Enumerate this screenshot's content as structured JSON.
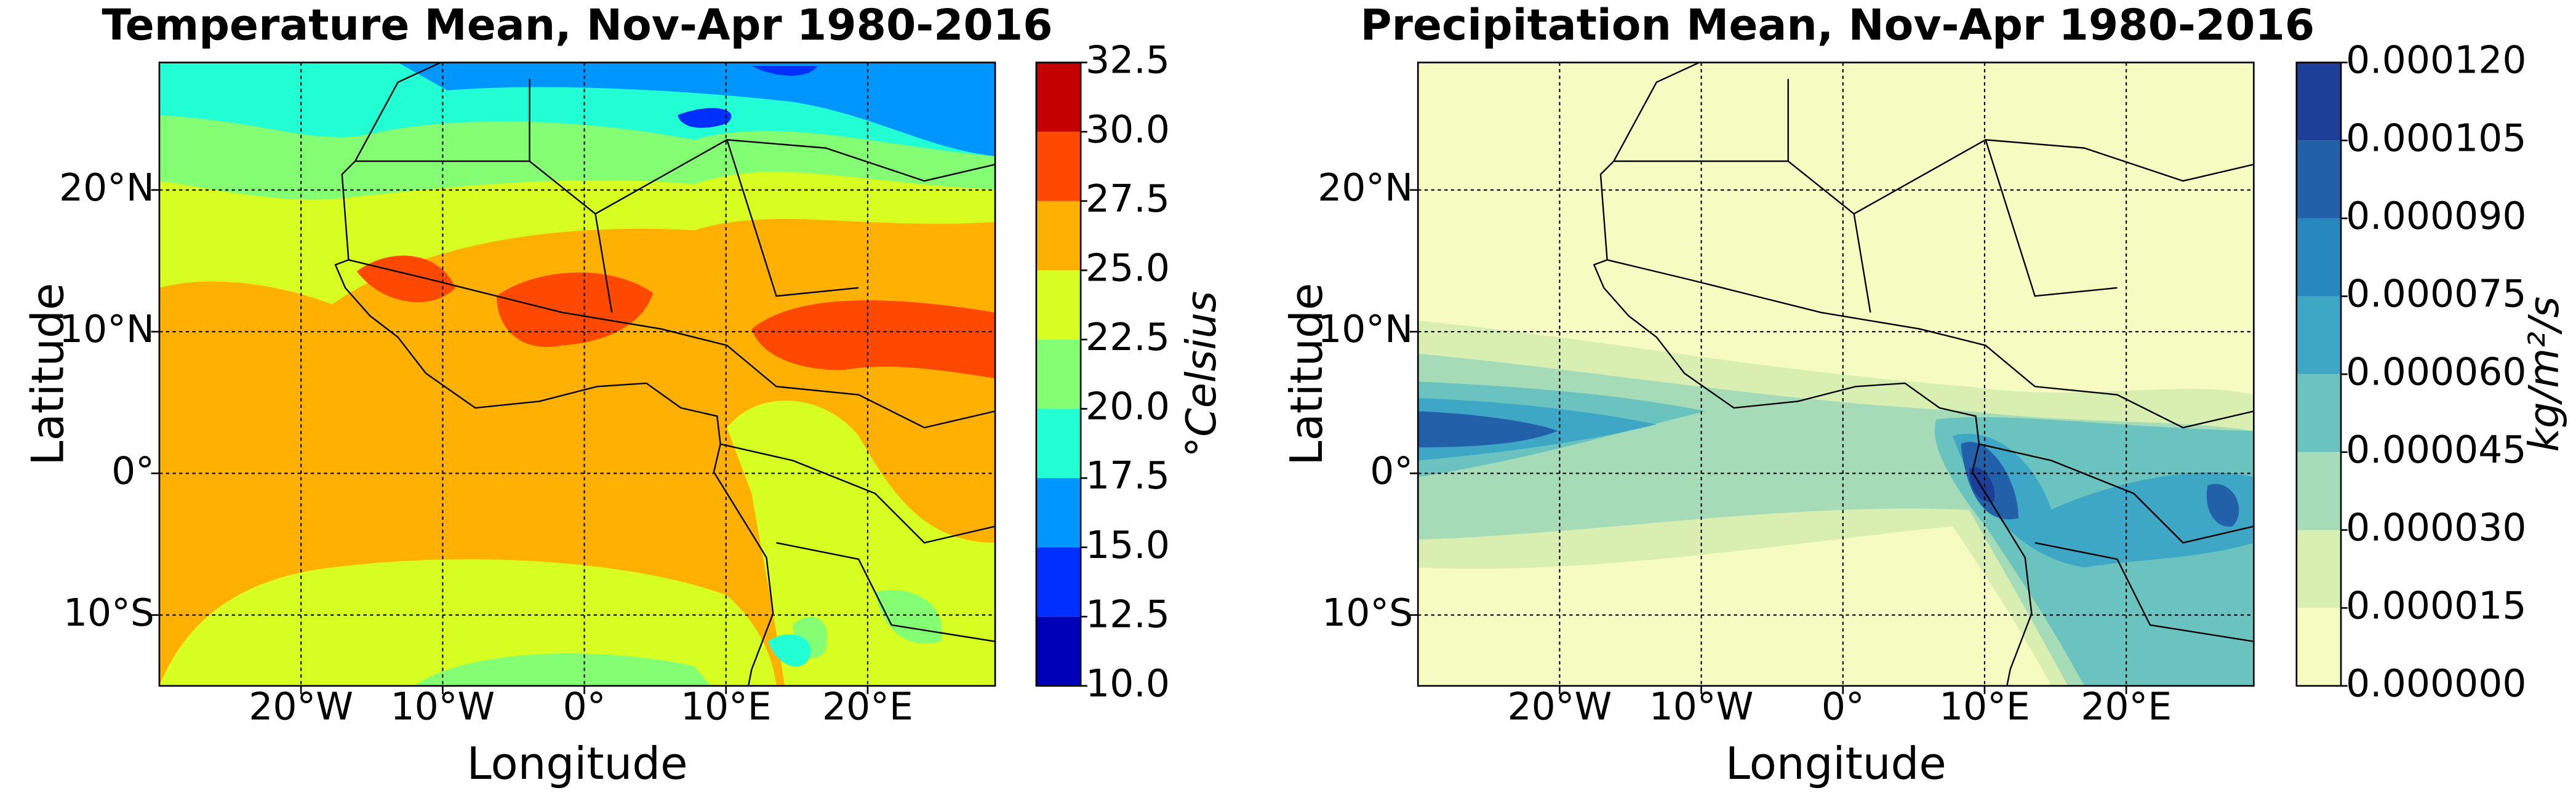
{
  "chart_data": [
    {
      "type": "contour",
      "title": "Temperature Mean, Nov-Apr 1980-2016",
      "xlabel": "Longitude",
      "ylabel": "Latitude",
      "xlim": [
        -30,
        29
      ],
      "ylim": [
        -15,
        29
      ],
      "xticks": [
        {
          "value": -20,
          "label": "20°W"
        },
        {
          "value": -10,
          "label": "10°W"
        },
        {
          "value": 0,
          "label": "0°"
        },
        {
          "value": 10,
          "label": "10°E"
        },
        {
          "value": 20,
          "label": "20°E"
        }
      ],
      "yticks": [
        {
          "value": -10,
          "label": "10°S"
        },
        {
          "value": 0,
          "label": "0°"
        },
        {
          "value": 10,
          "label": "10°N"
        },
        {
          "value": 20,
          "label": "20°N"
        }
      ],
      "grid": true,
      "colorbar_label": "°Celsius",
      "clim": [
        10,
        32.5
      ],
      "colorbar_ticks": [
        {
          "value": 10,
          "label": "10.0"
        },
        12.5,
        {
          "value": 15,
          "label": "15.0"
        },
        17.5,
        {
          "value": 20,
          "label": "20.0"
        },
        22.5,
        {
          "value": 25,
          "label": "25.0"
        },
        27.5,
        {
          "value": 30,
          "label": "30.0"
        },
        32.5
      ],
      "colors": [
        "#0000b8",
        "#0030ff",
        "#0096ff",
        "#22ffd4",
        "#84ff74",
        "#d8ff22",
        "#ffb000",
        "#ff4800",
        "#c40000"
      ]
    },
    {
      "type": "contour",
      "title": "Precipitation Mean, Nov-Apr 1980-2016",
      "xlabel": "Longitude",
      "ylabel": "Latitude",
      "xlim": [
        -30,
        29
      ],
      "ylim": [
        -15,
        29
      ],
      "xticks": [
        {
          "value": -20,
          "label": "20°W"
        },
        {
          "value": -10,
          "label": "10°W"
        },
        {
          "value": 0,
          "label": "0°"
        },
        {
          "value": 10,
          "label": "10°E"
        },
        {
          "value": 20,
          "label": "20°E"
        }
      ],
      "yticks": [
        {
          "value": -10,
          "label": "10°S"
        },
        {
          "value": 0,
          "label": "0°"
        },
        {
          "value": 10,
          "label": "10°N"
        },
        {
          "value": 20,
          "label": "20°N"
        }
      ],
      "grid": true,
      "colorbar_label": "kg/m²/s",
      "clim": [
        0,
        0.00012
      ],
      "colorbar_ticks": [
        {
          "value": 0,
          "label": "0.000000"
        },
        {
          "value": 1.5e-05,
          "label": "0.000015"
        },
        {
          "value": 3e-05,
          "label": "0.000030"
        },
        {
          "value": 4.5e-05,
          "label": "0.000045"
        },
        {
          "value": 6e-05,
          "label": "0.000060"
        },
        {
          "value": 7.5e-05,
          "label": "0.000075"
        },
        {
          "value": 9e-05,
          "label": "0.000090"
        },
        {
          "value": 0.000105,
          "label": "0.000105"
        },
        {
          "value": 0.00012,
          "label": "0.000120"
        }
      ],
      "colors": [
        "#f6fbc2",
        "#d9efb1",
        "#a6dbb7",
        "#6ac3be",
        "#3ea7c6",
        "#2888bd",
        "#2260a9",
        "#1e3f98"
      ]
    }
  ]
}
